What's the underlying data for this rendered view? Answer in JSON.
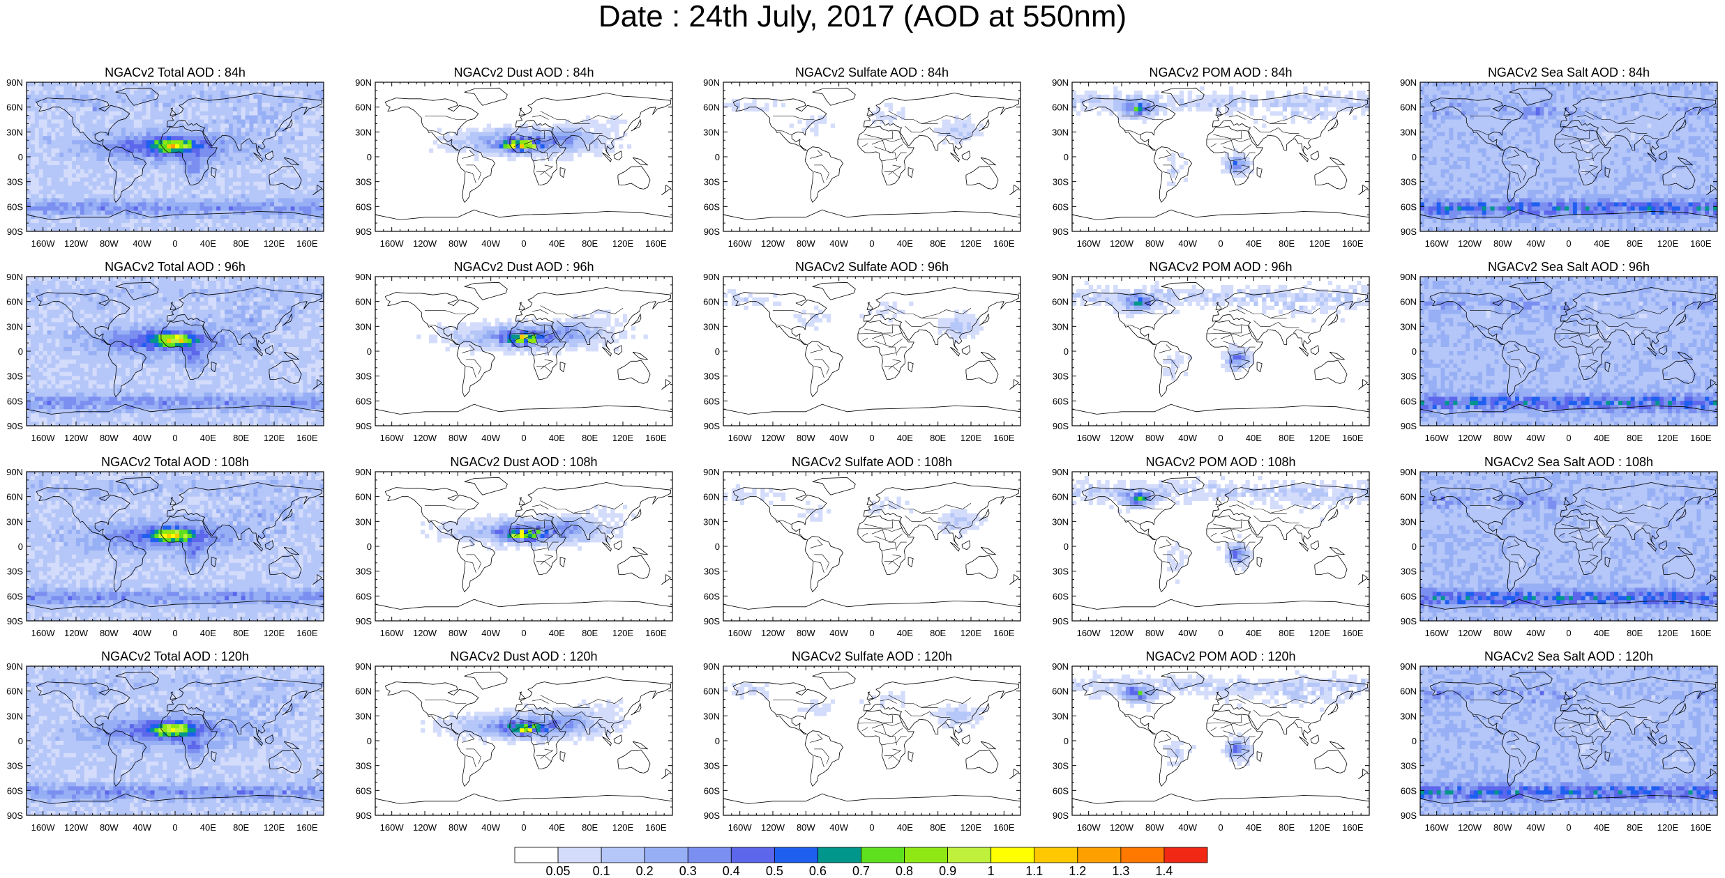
{
  "title": "Date : 24th July, 2017 (AOD at 550nm)",
  "rows": [
    "84h",
    "96h",
    "108h",
    "120h"
  ],
  "columns": [
    {
      "key": "total",
      "prefix": "NGACv2 Total AOD"
    },
    {
      "key": "dust",
      "prefix": "NGACv2 Dust AOD"
    },
    {
      "key": "sulfate",
      "prefix": "NGACv2 Sulfate AOD"
    },
    {
      "key": "pom",
      "prefix": "NGACv2 POM AOD"
    },
    {
      "key": "seasalt",
      "prefix": "NGACv2 Sea Salt AOD"
    }
  ],
  "panel_titles": [
    [
      "NGACv2 Total AOD : 84h",
      "NGACv2 Dust AOD : 84h",
      "NGACv2 Sulfate AOD : 84h",
      "NGACv2 POM AOD : 84h",
      "NGACv2 Sea Salt AOD : 84h"
    ],
    [
      "NGACv2 Total AOD : 96h",
      "NGACv2 Dust AOD : 96h",
      "NGACv2 Sulfate AOD : 96h",
      "NGACv2 POM AOD : 96h",
      "NGACv2 Sea Salt AOD : 96h"
    ],
    [
      "NGACv2 Total AOD : 108h",
      "NGACv2 Dust AOD : 108h",
      "NGACv2 Sulfate AOD : 108h",
      "NGACv2 POM AOD : 108h",
      "NGACv2 Sea Salt AOD : 108h"
    ],
    [
      "NGACv2 Total AOD : 120h",
      "NGACv2 Dust AOD : 120h",
      "NGACv2 Sulfate AOD : 120h",
      "NGACv2 POM AOD : 120h",
      "NGACv2 Sea Salt  AOD : 120h"
    ]
  ],
  "lat_ticks": [
    "90N",
    "60N",
    "30N",
    "0",
    "30S",
    "60S",
    "90S"
  ],
  "lon_ticks": [
    "160W",
    "120W",
    "80W",
    "40W",
    "0",
    "40E",
    "80E",
    "120E",
    "160E"
  ],
  "lon_tick_values": [
    -160,
    -120,
    -80,
    -40,
    0,
    40,
    80,
    120,
    160
  ],
  "lat_tick_values": [
    90,
    60,
    30,
    0,
    -30,
    -60,
    -90
  ],
  "colorbar": {
    "levels": [
      "0.05",
      "0.1",
      "0.2",
      "0.3",
      "0.4",
      "0.5",
      "0.6",
      "0.7",
      "0.8",
      "0.9",
      "1",
      "1.1",
      "1.2",
      "1.3",
      "1.4"
    ],
    "level_values": [
      0.05,
      0.1,
      0.2,
      0.3,
      0.4,
      0.5,
      0.6,
      0.7,
      0.8,
      0.9,
      1.0,
      1.1,
      1.2,
      1.3,
      1.4
    ],
    "colors": [
      "#ffffff",
      "#d4dcfb",
      "#b5c6f8",
      "#97aff4",
      "#7b8ff0",
      "#5c67eb",
      "#1f5ff0",
      "#00968c",
      "#5fe01e",
      "#8fe814",
      "#bff03c",
      "#ffff00",
      "#ffc800",
      "#ffa000",
      "#ff7800",
      "#f02814"
    ]
  }
}
